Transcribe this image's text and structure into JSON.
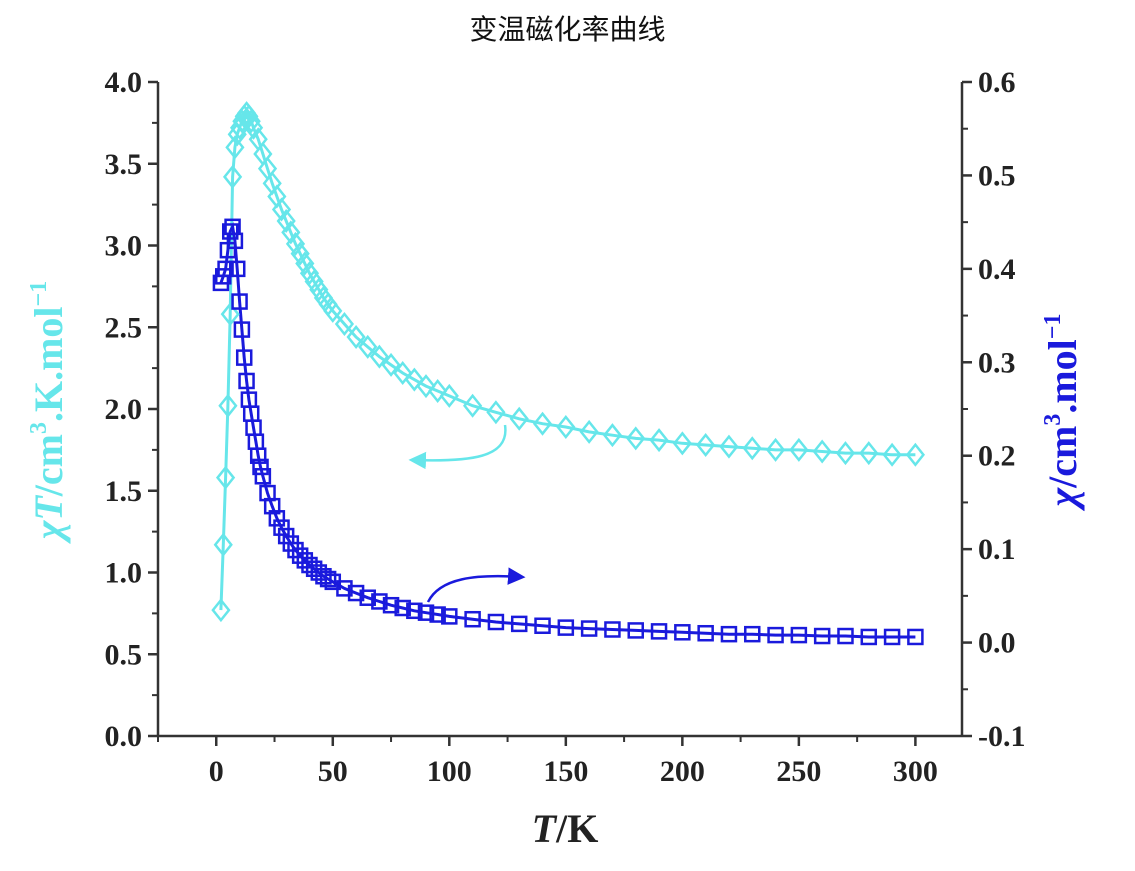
{
  "title": "变温磁化率曲线",
  "chart_data": {
    "type": "scatter",
    "title": "变温磁化率曲线",
    "x": {
      "label_italic": "T",
      "label_rest": "/K",
      "range": [
        -25,
        320
      ],
      "ticks": [
        0,
        50,
        100,
        150,
        200,
        250,
        300
      ],
      "tick_labels": [
        "0",
        "50",
        "100",
        "150",
        "200",
        "250",
        "300"
      ]
    },
    "y_left": {
      "label_italic": "χT",
      "label_rest": "/cm",
      "label_sup1": "3",
      "label_mid": ".K.mol",
      "label_sup2": "−1",
      "range": [
        0.0,
        4.0
      ],
      "ticks": [
        0.0,
        0.5,
        1.0,
        1.5,
        2.0,
        2.5,
        3.0,
        3.5,
        4.0
      ],
      "tick_labels": [
        "0.0",
        "0.5",
        "1.0",
        "1.5",
        "2.0",
        "2.5",
        "3.0",
        "3.5",
        "4.0"
      ],
      "color": "#66e6ea"
    },
    "y_right": {
      "label_italic": "χ",
      "label_rest": "/cm",
      "label_sup1": "3",
      "label_mid": ".mol",
      "label_sup2": "−1",
      "range": [
        -0.1,
        0.6
      ],
      "ticks": [
        -0.1,
        0.0,
        0.1,
        0.2,
        0.3,
        0.4,
        0.5,
        0.6
      ],
      "tick_labels": [
        "-0.1",
        "0.0",
        "0.1",
        "0.2",
        "0.3",
        "0.4",
        "0.5",
        "0.6"
      ],
      "color": "#1a1adc"
    },
    "grid": false,
    "legend": "none",
    "series": [
      {
        "axis": "left",
        "marker": "diamond",
        "color": "#66e6ea",
        "points": [
          [
            2,
            0.77
          ],
          [
            3,
            1.17
          ],
          [
            4,
            1.58
          ],
          [
            5,
            2.02
          ],
          [
            6,
            2.58
          ],
          [
            7,
            3.42
          ],
          [
            8,
            3.6
          ],
          [
            9,
            3.68
          ],
          [
            10,
            3.72
          ],
          [
            11,
            3.76
          ],
          [
            12,
            3.79
          ],
          [
            13,
            3.81
          ],
          [
            14,
            3.79
          ],
          [
            15,
            3.76
          ],
          [
            16,
            3.72
          ],
          [
            18,
            3.65
          ],
          [
            20,
            3.56
          ],
          [
            22,
            3.47
          ],
          [
            24,
            3.38
          ],
          [
            26,
            3.3
          ],
          [
            28,
            3.22
          ],
          [
            30,
            3.15
          ],
          [
            32,
            3.08
          ],
          [
            34,
            3.01
          ],
          [
            36,
            2.95
          ],
          [
            38,
            2.89
          ],
          [
            40,
            2.83
          ],
          [
            42,
            2.78
          ],
          [
            44,
            2.73
          ],
          [
            46,
            2.68
          ],
          [
            48,
            2.64
          ],
          [
            50,
            2.6
          ],
          [
            55,
            2.52
          ],
          [
            60,
            2.44
          ],
          [
            65,
            2.38
          ],
          [
            70,
            2.32
          ],
          [
            75,
            2.27
          ],
          [
            80,
            2.22
          ],
          [
            85,
            2.18
          ],
          [
            90,
            2.14
          ],
          [
            95,
            2.11
          ],
          [
            100,
            2.08
          ],
          [
            110,
            2.02
          ],
          [
            120,
            1.98
          ],
          [
            130,
            1.94
          ],
          [
            140,
            1.91
          ],
          [
            150,
            1.89
          ],
          [
            160,
            1.86
          ],
          [
            170,
            1.84
          ],
          [
            180,
            1.82
          ],
          [
            190,
            1.81
          ],
          [
            200,
            1.79
          ],
          [
            210,
            1.78
          ],
          [
            220,
            1.77
          ],
          [
            230,
            1.76
          ],
          [
            240,
            1.75
          ],
          [
            250,
            1.75
          ],
          [
            260,
            1.74
          ],
          [
            270,
            1.73
          ],
          [
            280,
            1.73
          ],
          [
            290,
            1.72
          ],
          [
            300,
            1.72
          ]
        ]
      },
      {
        "axis": "right",
        "marker": "square",
        "color": "#1a1adc",
        "points": [
          [
            2,
            0.385
          ],
          [
            3,
            0.392
          ],
          [
            4,
            0.4
          ],
          [
            5,
            0.42
          ],
          [
            6,
            0.44
          ],
          [
            7,
            0.445
          ],
          [
            8,
            0.43
          ],
          [
            9,
            0.4
          ],
          [
            10,
            0.365
          ],
          [
            11,
            0.335
          ],
          [
            12,
            0.305
          ],
          [
            13,
            0.28
          ],
          [
            14,
            0.26
          ],
          [
            15,
            0.245
          ],
          [
            16,
            0.23
          ],
          [
            17,
            0.215
          ],
          [
            18,
            0.2
          ],
          [
            19,
            0.188
          ],
          [
            20,
            0.178
          ],
          [
            22,
            0.16
          ],
          [
            24,
            0.146
          ],
          [
            26,
            0.133
          ],
          [
            28,
            0.123
          ],
          [
            30,
            0.114
          ],
          [
            32,
            0.106
          ],
          [
            34,
            0.099
          ],
          [
            36,
            0.093
          ],
          [
            38,
            0.088
          ],
          [
            40,
            0.083
          ],
          [
            42,
            0.079
          ],
          [
            44,
            0.075
          ],
          [
            46,
            0.071
          ],
          [
            48,
            0.068
          ],
          [
            50,
            0.065
          ],
          [
            55,
            0.058
          ],
          [
            60,
            0.053
          ],
          [
            65,
            0.048
          ],
          [
            70,
            0.044
          ],
          [
            75,
            0.04
          ],
          [
            80,
            0.037
          ],
          [
            85,
            0.034
          ],
          [
            90,
            0.032
          ],
          [
            95,
            0.03
          ],
          [
            100,
            0.028
          ],
          [
            110,
            0.025
          ],
          [
            120,
            0.022
          ],
          [
            130,
            0.02
          ],
          [
            140,
            0.018
          ],
          [
            150,
            0.016
          ],
          [
            160,
            0.015
          ],
          [
            170,
            0.014
          ],
          [
            180,
            0.013
          ],
          [
            190,
            0.012
          ],
          [
            200,
            0.011
          ],
          [
            210,
            0.01
          ],
          [
            220,
            0.009
          ],
          [
            230,
            0.009
          ],
          [
            240,
            0.008
          ],
          [
            250,
            0.008
          ],
          [
            260,
            0.007
          ],
          [
            270,
            0.007
          ],
          [
            280,
            0.006
          ],
          [
            290,
            0.006
          ],
          [
            300,
            0.006
          ]
        ]
      }
    ],
    "annotations": [
      {
        "type": "arrow",
        "direction": "left",
        "points_to": "left axis",
        "color": "#66e6ea",
        "near": [
          130,
          1.9
        ]
      },
      {
        "type": "arrow",
        "direction": "right",
        "points_to": "right axis",
        "color": "#1a1adc",
        "near": [
          95,
          0.04
        ]
      }
    ]
  }
}
